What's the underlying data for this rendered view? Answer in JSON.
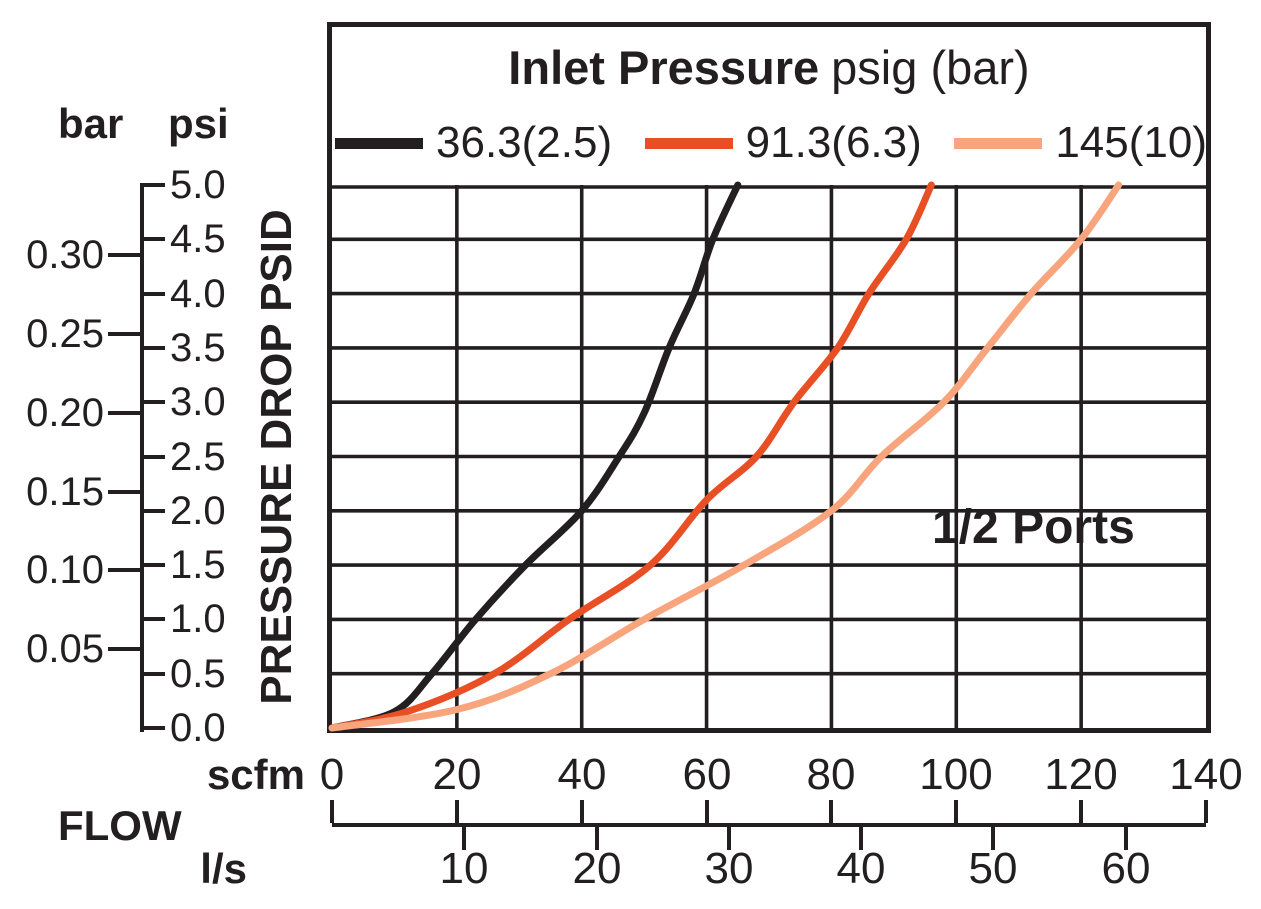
{
  "chart_data": {
    "type": "line",
    "title": "Inlet Pressure psig (bar)",
    "title_bold": "Inlet Pressure",
    "title_unit": "psig (bar)",
    "annotation": "1/2 Ports",
    "legend_position": "top",
    "grid": true,
    "colors": {
      "ink": "#231f20",
      "orange": "#e94f25",
      "salmon": "#f8a57e"
    },
    "x_axis": {
      "label": "FLOW",
      "primary_unit": "scfm",
      "secondary_unit": "l/s",
      "scfm_range": [
        0,
        140
      ],
      "scfm_ticks": [
        0,
        20,
        40,
        60,
        80,
        100,
        120,
        140
      ],
      "ls_ticks": [
        10,
        20,
        30,
        40,
        50,
        60
      ],
      "scfm_per_ls": 2.1189
    },
    "y_axis": {
      "label": "PRESSURE DROP PSID",
      "primary_unit": "psi",
      "secondary_unit": "bar",
      "psi_range": [
        0,
        5
      ],
      "psi_ticks": [
        "0.0",
        "0.5",
        "1.0",
        "1.5",
        "2.0",
        "2.5",
        "3.0",
        "3.5",
        "4.0",
        "4.5",
        "5.0"
      ],
      "bar_ticks": [
        "0.05",
        "0.10",
        "0.15",
        "0.20",
        "0.25",
        "0.30"
      ],
      "psi_per_bar": 14.504
    },
    "series": [
      {
        "name": "36.3(2.5)",
        "inlet_psig": 36.3,
        "inlet_bar": 2.5,
        "color": "#231f20",
        "points_scfm_psid": [
          [
            0,
            0
          ],
          [
            10,
            0.15
          ],
          [
            16,
            0.5
          ],
          [
            23,
            1.0
          ],
          [
            31,
            1.5
          ],
          [
            40,
            2.0
          ],
          [
            46,
            2.5
          ],
          [
            50,
            2.9
          ],
          [
            54,
            3.5
          ],
          [
            58,
            4.0
          ],
          [
            61,
            4.5
          ],
          [
            65,
            5.0
          ]
        ]
      },
      {
        "name": "91.3(6.3)",
        "inlet_psig": 91.3,
        "inlet_bar": 6.3,
        "color": "#e94f25",
        "points_scfm_psid": [
          [
            0,
            0
          ],
          [
            12,
            0.15
          ],
          [
            26,
            0.5
          ],
          [
            38,
            1.0
          ],
          [
            51,
            1.5
          ],
          [
            60,
            2.1
          ],
          [
            68,
            2.5
          ],
          [
            74,
            3.0
          ],
          [
            81,
            3.5
          ],
          [
            86,
            4.0
          ],
          [
            92,
            4.5
          ],
          [
            96,
            5.0
          ]
        ]
      },
      {
        "name": "145(10)",
        "inlet_psig": 145,
        "inlet_bar": 10,
        "color": "#f8a57e",
        "points_scfm_psid": [
          [
            0,
            0
          ],
          [
            20,
            0.17
          ],
          [
            35,
            0.5
          ],
          [
            50,
            1.0
          ],
          [
            66,
            1.5
          ],
          [
            80,
            2.0
          ],
          [
            88,
            2.5
          ],
          [
            98,
            3.0
          ],
          [
            105,
            3.5
          ],
          [
            112,
            4.0
          ],
          [
            120,
            4.5
          ],
          [
            126,
            5.0
          ]
        ]
      }
    ]
  }
}
